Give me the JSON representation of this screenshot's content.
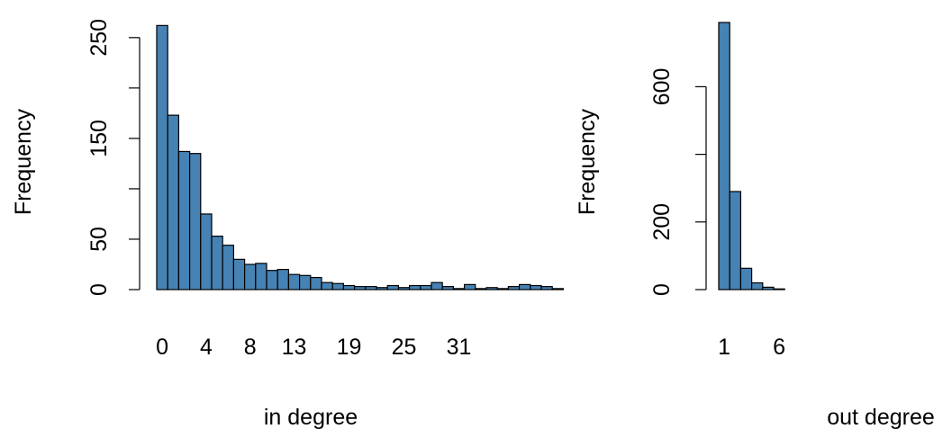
{
  "chart_data": [
    {
      "type": "bar",
      "xlabel": "in degree",
      "ylabel": "Frequency",
      "ylim": [
        0,
        265
      ],
      "yticks": [
        0,
        50,
        100,
        150,
        200,
        250
      ],
      "ytick_labels": [
        "0",
        "50",
        "",
        "150",
        "",
        "250"
      ],
      "categories": [
        0,
        1,
        2,
        3,
        4,
        5,
        6,
        7,
        8,
        9,
        10,
        11,
        12,
        13,
        14,
        15,
        16,
        17,
        18,
        19,
        20,
        21,
        22,
        23,
        24,
        25,
        26,
        27,
        28,
        29,
        30,
        31,
        32,
        33,
        34,
        35,
        36
      ],
      "xtick_labels": [
        {
          "category": 0,
          "label": "0"
        },
        {
          "category": 4,
          "label": "4"
        },
        {
          "category": 8,
          "label": "8"
        },
        {
          "category": 12,
          "label": "13"
        },
        {
          "category": 17,
          "label": "19"
        },
        {
          "category": 22,
          "label": "25"
        },
        {
          "category": 27,
          "label": "31"
        }
      ],
      "values": [
        262,
        173,
        137,
        135,
        75,
        53,
        44,
        30,
        25,
        26,
        19,
        20,
        15,
        14,
        12,
        7,
        6,
        4,
        3,
        3,
        2,
        4,
        2,
        4,
        4,
        7,
        3,
        1,
        5,
        1,
        2,
        1,
        3,
        5,
        4,
        3,
        1
      ],
      "bar_color": "#4682b4"
    },
    {
      "type": "bar",
      "xlabel": "out degree",
      "ylabel": "Frequency",
      "ylim": [
        0,
        790
      ],
      "yticks": [
        0,
        200,
        400,
        600
      ],
      "ytick_labels": [
        "0",
        "200",
        "",
        "600"
      ],
      "categories": [
        1,
        2,
        3,
        4,
        5,
        6
      ],
      "xtick_labels": [
        {
          "category": 1,
          "label": "1"
        },
        {
          "category": 6,
          "label": "6"
        }
      ],
      "values": [
        790,
        290,
        63,
        20,
        7,
        2
      ],
      "bar_color": "#4682b4"
    }
  ]
}
